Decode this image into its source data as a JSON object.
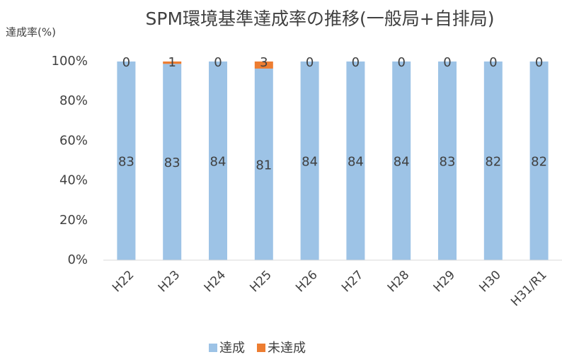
{
  "chart_data": {
    "type": "bar",
    "stacking": "percent",
    "title": "SPM環境基準達成率の推移(一般局+自排局)",
    "y_label": "達成率(%)",
    "categories": [
      "H22",
      "H23",
      "H24",
      "H25",
      "H26",
      "H27",
      "H28",
      "H29",
      "H30",
      "H31/R1"
    ],
    "series": [
      {
        "name": "達成",
        "color": "#9dc3e6",
        "values": [
          83,
          83,
          84,
          81,
          84,
          84,
          84,
          83,
          82,
          82
        ]
      },
      {
        "name": "未達成",
        "color": "#ed7d31",
        "values": [
          0,
          1,
          0,
          3,
          0,
          0,
          0,
          0,
          0,
          0
        ]
      }
    ],
    "ylim": [
      0,
      100
    ],
    "yticks": [
      {
        "value": 0,
        "label": "0%"
      },
      {
        "value": 20,
        "label": "20%"
      },
      {
        "value": 40,
        "label": "40%"
      },
      {
        "value": 60,
        "label": "60%"
      },
      {
        "value": 80,
        "label": "80%"
      },
      {
        "value": 100,
        "label": "100%"
      }
    ],
    "grid": false,
    "legend": "bottom"
  }
}
